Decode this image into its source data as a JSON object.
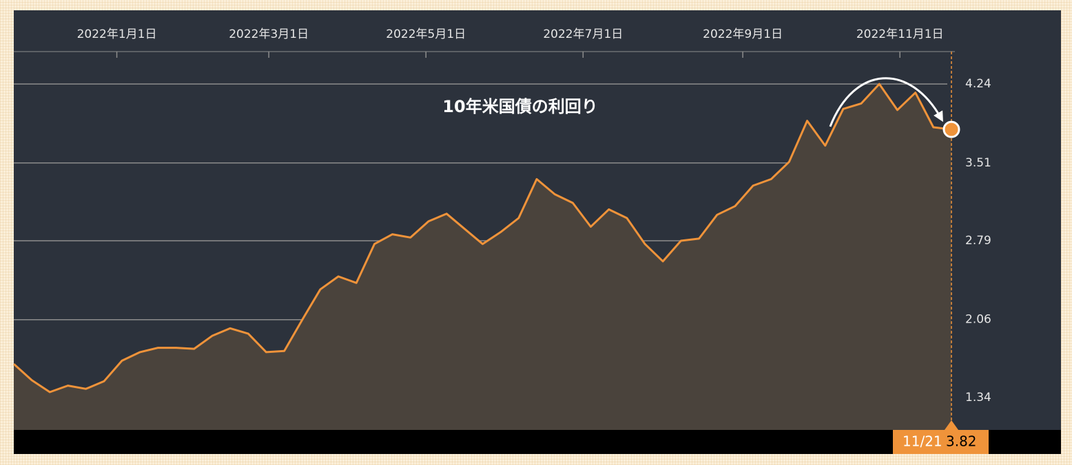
{
  "chart_data": {
    "type": "area",
    "title": "10年米国債の利回り",
    "color": "#ef933a",
    "fill": "#4a433c",
    "grid": true,
    "x": [
      "2021-11-22",
      "2021-11-29",
      "2021-12-06",
      "2021-12-13",
      "2021-12-20",
      "2021-12-27",
      "2022-01-03",
      "2022-01-10",
      "2022-01-17",
      "2022-01-24",
      "2022-01-31",
      "2022-02-07",
      "2022-02-14",
      "2022-02-21",
      "2022-02-28",
      "2022-03-07",
      "2022-03-14",
      "2022-03-21",
      "2022-03-28",
      "2022-04-04",
      "2022-04-11",
      "2022-04-18",
      "2022-04-25",
      "2022-05-02",
      "2022-05-09",
      "2022-05-16",
      "2022-05-23",
      "2022-05-30",
      "2022-06-06",
      "2022-06-13",
      "2022-06-20",
      "2022-06-27",
      "2022-07-04",
      "2022-07-11",
      "2022-07-18",
      "2022-07-25",
      "2022-08-01",
      "2022-08-08",
      "2022-08-15",
      "2022-08-22",
      "2022-08-29",
      "2022-09-05",
      "2022-09-12",
      "2022-09-19",
      "2022-09-26",
      "2022-10-03",
      "2022-10-10",
      "2022-10-17",
      "2022-10-24",
      "2022-10-31",
      "2022-11-07",
      "2022-11-14",
      "2022-11-21"
    ],
    "values": [
      1.65,
      1.5,
      1.39,
      1.45,
      1.42,
      1.49,
      1.68,
      1.76,
      1.8,
      1.8,
      1.79,
      1.91,
      1.98,
      1.93,
      1.76,
      1.77,
      2.06,
      2.34,
      2.46,
      2.4,
      2.76,
      2.85,
      2.82,
      2.97,
      3.04,
      2.9,
      2.76,
      2.87,
      3.0,
      3.36,
      3.22,
      3.14,
      2.92,
      3.08,
      3.0,
      2.76,
      2.6,
      2.79,
      2.81,
      3.03,
      3.11,
      3.3,
      3.36,
      3.52,
      3.9,
      3.67,
      4.01,
      4.06,
      4.24,
      4.0,
      4.16,
      3.84,
      3.82
    ],
    "xlim": [
      "2021-11-22",
      "2022-11-21"
    ],
    "xticks": [
      {
        "value": "2022-01-01",
        "label": "2022年1月1日"
      },
      {
        "value": "2022-03-01",
        "label": "2022年3月1日"
      },
      {
        "value": "2022-05-01",
        "label": "2022年5月1日"
      },
      {
        "value": "2022-07-01",
        "label": "2022年7月1日"
      },
      {
        "value": "2022-09-01",
        "label": "2022年9月1日"
      },
      {
        "value": "2022-11-01",
        "label": "2022年11月1日"
      }
    ],
    "ylim": [
      1.04,
      4.54
    ],
    "yticks": [
      1.34,
      2.06,
      2.79,
      3.51,
      4.24
    ],
    "current_date_label": "11/21"
  }
}
